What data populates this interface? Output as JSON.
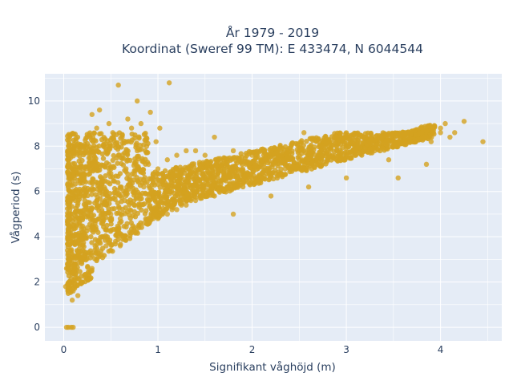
{
  "chart_data": {
    "type": "scatter",
    "title": "År 1979 - 2019",
    "subtitle": "Koordinat (Sweref 99 TM): E 433474, N 6044544",
    "xlabel": "Signifikant våghöjd (m)",
    "ylabel": "Vågperiod (s)",
    "xlim": [
      -0.2,
      4.65
    ],
    "ylim": [
      -0.6,
      11.2
    ],
    "xticks": [
      0,
      1,
      2,
      3,
      4
    ],
    "yticks": [
      0,
      2,
      4,
      6,
      8,
      10
    ],
    "grid": true,
    "plot_background": "#e5ecf6",
    "marker_color": "#d4a220",
    "series": [
      {
        "points": [
          [
            0.03,
            0.0
          ],
          [
            0.05,
            0.0
          ],
          [
            0.08,
            0.0
          ],
          [
            0.1,
            0.0
          ],
          [
            0.02,
            1.8
          ],
          [
            0.03,
            2.6
          ],
          [
            0.04,
            3.4
          ],
          [
            0.05,
            4.2
          ],
          [
            0.06,
            5.0
          ],
          [
            0.07,
            6.0
          ],
          [
            0.08,
            7.8
          ],
          [
            0.09,
            1.2
          ],
          [
            0.1,
            1.6
          ],
          [
            0.1,
            2.8
          ],
          [
            0.12,
            5.6
          ],
          [
            0.14,
            6.8
          ],
          [
            0.15,
            1.4
          ],
          [
            0.15,
            3.2
          ],
          [
            0.17,
            4.6
          ],
          [
            0.18,
            6.0
          ],
          [
            0.2,
            2.0
          ],
          [
            0.2,
            3.6
          ],
          [
            0.22,
            5.2
          ],
          [
            0.24,
            7.0
          ],
          [
            0.25,
            2.2
          ],
          [
            0.25,
            4.4
          ],
          [
            0.28,
            6.4
          ],
          [
            0.28,
            8.4
          ],
          [
            0.3,
            2.6
          ],
          [
            0.3,
            4.8
          ],
          [
            0.3,
            9.4
          ],
          [
            0.32,
            7.6
          ],
          [
            0.35,
            3.0
          ],
          [
            0.35,
            5.6
          ],
          [
            0.35,
            8.8
          ],
          [
            0.38,
            9.6
          ],
          [
            0.4,
            3.2
          ],
          [
            0.4,
            4.6
          ],
          [
            0.4,
            6.6
          ],
          [
            0.42,
            8.0
          ],
          [
            0.45,
            3.6
          ],
          [
            0.45,
            5.4
          ],
          [
            0.48,
            7.2
          ],
          [
            0.48,
            9.0
          ],
          [
            0.5,
            3.4
          ],
          [
            0.5,
            5.0
          ],
          [
            0.5,
            6.8
          ],
          [
            0.52,
            8.6
          ],
          [
            0.55,
            3.8
          ],
          [
            0.55,
            5.8
          ],
          [
            0.58,
            7.6
          ],
          [
            0.58,
            10.7
          ],
          [
            0.6,
            3.6
          ],
          [
            0.6,
            4.8
          ],
          [
            0.6,
            6.2
          ],
          [
            0.62,
            8.4
          ],
          [
            0.65,
            4.0
          ],
          [
            0.65,
            5.6
          ],
          [
            0.68,
            7.4
          ],
          [
            0.68,
            9.2
          ],
          [
            0.7,
            4.2
          ],
          [
            0.7,
            5.2
          ],
          [
            0.7,
            6.6
          ],
          [
            0.72,
            8.8
          ],
          [
            0.75,
            4.4
          ],
          [
            0.75,
            6.0
          ],
          [
            0.78,
            7.8
          ],
          [
            0.78,
            10.0
          ],
          [
            0.8,
            4.4
          ],
          [
            0.8,
            5.4
          ],
          [
            0.8,
            7.0
          ],
          [
            0.82,
            9.0
          ],
          [
            0.85,
            4.6
          ],
          [
            0.85,
            6.2
          ],
          [
            0.88,
            8.0
          ],
          [
            0.9,
            4.6
          ],
          [
            0.9,
            5.6
          ],
          [
            0.9,
            7.2
          ],
          [
            0.92,
            9.5
          ],
          [
            0.95,
            4.8
          ],
          [
            0.95,
            6.4
          ],
          [
            0.98,
            8.2
          ],
          [
            1.0,
            4.8
          ],
          [
            1.0,
            5.8
          ],
          [
            1.0,
            7.0
          ],
          [
            1.02,
            8.8
          ],
          [
            1.05,
            5.0
          ],
          [
            1.05,
            6.4
          ],
          [
            1.1,
            5.0
          ],
          [
            1.1,
            6.0
          ],
          [
            1.1,
            7.4
          ],
          [
            1.12,
            10.8
          ],
          [
            1.15,
            5.2
          ],
          [
            1.15,
            6.6
          ],
          [
            1.2,
            5.2
          ],
          [
            1.2,
            6.2
          ],
          [
            1.2,
            7.6
          ],
          [
            1.25,
            5.4
          ],
          [
            1.25,
            6.8
          ],
          [
            1.3,
            5.4
          ],
          [
            1.3,
            6.4
          ],
          [
            1.3,
            7.8
          ],
          [
            1.35,
            5.6
          ],
          [
            1.35,
            7.0
          ],
          [
            1.4,
            5.6
          ],
          [
            1.4,
            6.4
          ],
          [
            1.4,
            7.8
          ],
          [
            1.45,
            5.8
          ],
          [
            1.5,
            5.8
          ],
          [
            1.5,
            6.6
          ],
          [
            1.5,
            7.6
          ],
          [
            1.55,
            6.0
          ],
          [
            1.6,
            5.8
          ],
          [
            1.6,
            6.6
          ],
          [
            1.6,
            8.4
          ],
          [
            1.65,
            6.2
          ],
          [
            1.7,
            6.0
          ],
          [
            1.7,
            6.8
          ],
          [
            1.7,
            7.4
          ],
          [
            1.75,
            6.2
          ],
          [
            1.8,
            6.2
          ],
          [
            1.8,
            6.8
          ],
          [
            1.8,
            7.8
          ],
          [
            1.85,
            6.4
          ],
          [
            1.9,
            6.4
          ],
          [
            1.9,
            7.0
          ],
          [
            1.95,
            6.6
          ],
          [
            2.0,
            6.4
          ],
          [
            2.0,
            7.0
          ],
          [
            2.0,
            7.6
          ],
          [
            2.05,
            6.6
          ],
          [
            2.1,
            6.6
          ],
          [
            2.1,
            7.2
          ],
          [
            2.15,
            6.8
          ],
          [
            2.2,
            6.8
          ],
          [
            2.2,
            7.2
          ],
          [
            2.25,
            6.8
          ],
          [
            2.3,
            6.8
          ],
          [
            2.3,
            7.4
          ],
          [
            2.35,
            7.0
          ],
          [
            2.4,
            7.0
          ],
          [
            2.4,
            7.4
          ],
          [
            2.45,
            7.0
          ],
          [
            2.5,
            7.0
          ],
          [
            2.5,
            7.4
          ],
          [
            2.55,
            8.6
          ],
          [
            2.6,
            7.2
          ],
          [
            2.6,
            7.6
          ],
          [
            2.7,
            7.2
          ],
          [
            2.7,
            7.6
          ],
          [
            2.8,
            7.4
          ],
          [
            2.8,
            7.8
          ],
          [
            2.9,
            7.4
          ],
          [
            2.9,
            7.8
          ],
          [
            3.0,
            7.6
          ],
          [
            3.0,
            8.0
          ],
          [
            3.1,
            7.6
          ],
          [
            3.1,
            8.0
          ],
          [
            3.2,
            7.8
          ],
          [
            3.2,
            8.2
          ],
          [
            3.3,
            7.8
          ],
          [
            3.3,
            8.2
          ],
          [
            3.4,
            8.0
          ],
          [
            3.4,
            8.4
          ],
          [
            3.5,
            8.0
          ],
          [
            3.5,
            8.4
          ],
          [
            3.55,
            6.6
          ],
          [
            3.6,
            8.2
          ],
          [
            3.6,
            8.6
          ],
          [
            3.7,
            8.2
          ],
          [
            3.7,
            8.6
          ],
          [
            3.8,
            8.4
          ],
          [
            3.8,
            8.8
          ],
          [
            3.9,
            8.6
          ],
          [
            3.9,
            8.2
          ],
          [
            4.0,
            8.6
          ],
          [
            4.0,
            8.8
          ],
          [
            4.05,
            9.0
          ],
          [
            4.1,
            8.4
          ],
          [
            4.15,
            8.6
          ],
          [
            4.25,
            9.1
          ],
          [
            4.45,
            8.2
          ],
          [
            3.85,
            7.2
          ],
          [
            3.45,
            7.4
          ],
          [
            3.0,
            6.6
          ],
          [
            2.6,
            6.2
          ],
          [
            2.2,
            5.8
          ],
          [
            1.8,
            5.0
          ]
        ]
      }
    ]
  }
}
